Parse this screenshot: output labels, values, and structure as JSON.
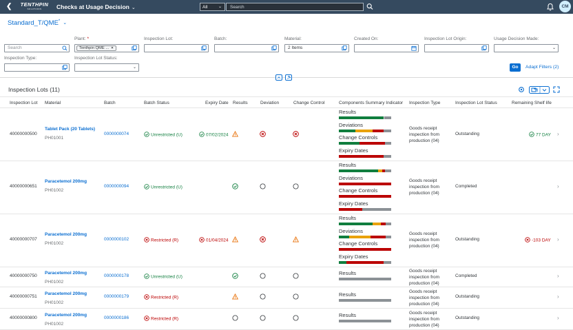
{
  "shell": {
    "logo_main": "TENTHPIN",
    "logo_sub": "SOLUTIONS",
    "title": "Checks at Usage Decision",
    "scope": "All",
    "search_placeholder": "Search",
    "avatar": "CM"
  },
  "variant": {
    "name": "Standard_T/QME",
    "modified": "*"
  },
  "filters": {
    "search_placeholder": "Search",
    "plant_label": "Plant:",
    "plant_required": "*",
    "plant_token": "Tenthpin QME ...",
    "inspection_lot_label": "Inspection Lot:",
    "batch_label": "Batch:",
    "material_label": "Material:",
    "material_value": "2 Items",
    "created_on_label": "Created On:",
    "origin_label": "Inspection Lot Origin:",
    "ud_made_label": "Usage Decision Made:",
    "type_label": "Inspection Type:",
    "status_label": "Inspection Lot Status:",
    "go": "Go",
    "adapt": "Adapt Filters (2)"
  },
  "table": {
    "title": "Inspection Lots (11)",
    "columns": [
      "Inspection Lot",
      "Material",
      "Batch",
      "Batch Status",
      "Expiry Date",
      "Results",
      "Deviation",
      "Change Control",
      "Components Summary Indicator",
      "Inspection Type",
      "Inspection Lot Status",
      "Remaining Shelf life"
    ],
    "summary_labels": {
      "results": "Results",
      "deviations": "Deviations",
      "change": "Change Controls",
      "expiry": "Expiry Dates"
    },
    "inspection_type_lines": [
      "Goods receipt",
      "inspection from",
      "production (04)"
    ],
    "rows": [
      {
        "lot": "40000000500",
        "material": "Tablet Pack (20 Tablets)",
        "material_id": "PH01001",
        "batch": "0000000074",
        "batch_status": "Unrestricted (U)",
        "batch_status_kind": "ok",
        "expiry": "07/02/2024",
        "expiry_kind": "ok",
        "results": "warning",
        "deviation": "error",
        "change": "error",
        "lot_status": "Outstanding",
        "shelf_life": "77  DAY",
        "shelf_kind": "ok",
        "bars": {
          "results": [
            [
              "#107e3e",
              0.85
            ],
            [
              "#d9d9d9",
              0.02
            ],
            [
              "#8c9196",
              0.13
            ]
          ],
          "deviations": [
            [
              "#107e3e",
              0.32
            ],
            [
              "#e9a20c",
              0.33
            ],
            [
              "#bb0000",
              0.2
            ],
            [
              "#8c9196",
              0.15
            ]
          ],
          "change": [
            [
              "#107e3e",
              0.4
            ],
            [
              "#bb0000",
              0.48
            ],
            [
              "#8c9196",
              0.12
            ]
          ],
          "expiry": [
            [
              "#bb0000",
              0.85
            ],
            [
              "#8c9196",
              0.15
            ]
          ]
        }
      },
      {
        "lot": "40000000651",
        "material": "Paracetemol 200mg",
        "material_id": "PH01002",
        "batch": "0000000094",
        "batch_status": "Unrestricted (U)",
        "batch_status_kind": "ok",
        "expiry": "",
        "expiry_kind": "",
        "results": "success",
        "deviation": "none",
        "change": "none",
        "lot_status": "Completed",
        "shelf_life": "",
        "shelf_kind": "",
        "bars": {
          "results": [
            [
              "#107e3e",
              0.75
            ],
            [
              "#e9a20c",
              0.08
            ],
            [
              "#bb0000",
              0.05
            ],
            [
              "#8c9196",
              0.12
            ]
          ],
          "deviations": [
            [
              "#bb0000",
              1.0
            ]
          ],
          "change": [
            [
              "#bb0000",
              1.0
            ]
          ],
          "expiry": [
            [
              "#bb0000",
              0.45
            ],
            [
              "#8c9196",
              0.55
            ]
          ]
        }
      },
      {
        "lot": "40000000707",
        "material": "Paracetemol 200mg",
        "material_id": "PH01002",
        "batch": "0000000102",
        "batch_status": "Restricted (R)",
        "batch_status_kind": "err",
        "expiry": "01/04/2024",
        "expiry_kind": "err",
        "results": "warning",
        "deviation": "error",
        "change": "warning",
        "lot_status": "Outstanding",
        "shelf_life": "-103  DAY",
        "shelf_kind": "err",
        "bars": {
          "results": [
            [
              "#107e3e",
              0.65
            ],
            [
              "#e9a20c",
              0.15
            ],
            [
              "#bb0000",
              0.1
            ],
            [
              "#8c9196",
              0.1
            ]
          ],
          "deviations": [
            [
              "#107e3e",
              0.2
            ],
            [
              "#e9a20c",
              0.4
            ],
            [
              "#bb0000",
              0.3
            ],
            [
              "#8c9196",
              0.1
            ]
          ],
          "change": [
            [
              "#bb0000",
              1.0
            ]
          ],
          "expiry": [
            [
              "#107e3e",
              0.15
            ],
            [
              "#bb0000",
              0.7
            ],
            [
              "#8c9196",
              0.15
            ]
          ]
        }
      },
      {
        "lot": "40000000750",
        "material": "Paracetemol 200mg",
        "material_id": "PH01002",
        "batch": "0000000178",
        "batch_status": "Unrestricted (U)",
        "batch_status_kind": "ok",
        "expiry": "",
        "expiry_kind": "",
        "results": "success",
        "deviation": "none",
        "change": "none",
        "lot_status": "Completed",
        "shelf_life": "",
        "shelf_kind": "",
        "bars": {
          "results": [
            [
              "#8c9196",
              1.0
            ]
          ]
        }
      },
      {
        "lot": "40000000751",
        "material": "Paracetemol 200mg",
        "material_id": "PH01002",
        "batch": "0000000179",
        "batch_status": "Restricted (R)",
        "batch_status_kind": "err",
        "expiry": "",
        "expiry_kind": "",
        "results": "warning",
        "deviation": "none",
        "change": "none",
        "lot_status": "Outstanding",
        "shelf_life": "",
        "shelf_kind": "",
        "bars": {
          "results": [
            [
              "#8c9196",
              1.0
            ]
          ]
        }
      },
      {
        "lot": "40000000800",
        "material": "Paracetemol 200mg",
        "material_id": "PH01002",
        "batch": "0000000186",
        "batch_status": "Restricted (R)",
        "batch_status_kind": "err",
        "expiry": "",
        "expiry_kind": "",
        "results": "none",
        "deviation": "none",
        "change": "none",
        "lot_status": "Outstanding",
        "shelf_life": "",
        "shelf_kind": "",
        "bars": {
          "results": [
            [
              "#8c9196",
              1.0
            ]
          ]
        }
      }
    ]
  }
}
